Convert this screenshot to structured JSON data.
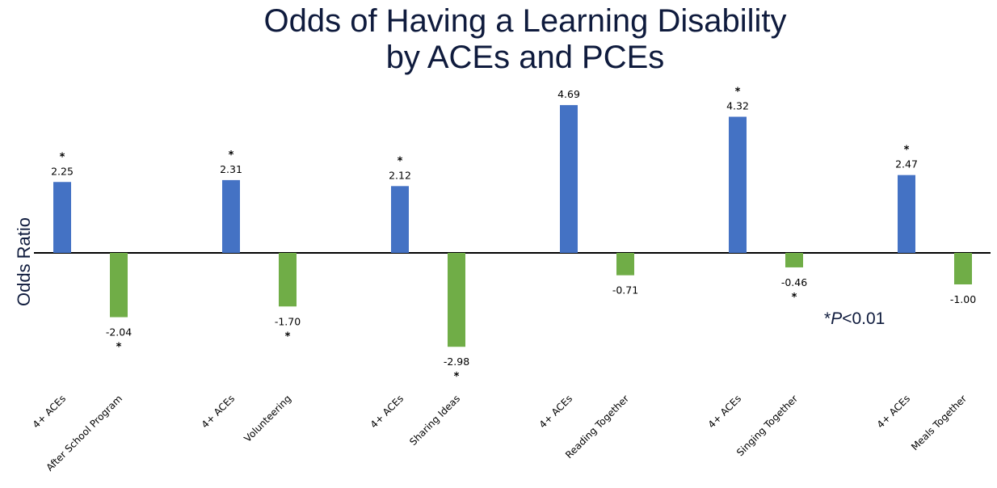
{
  "chart_data": {
    "type": "bar",
    "title_line1": "Odds of Having a Learning Disability",
    "title_line2": "by ACEs and PCEs",
    "ylabel": "Odds Ratio",
    "xlabel": "",
    "note_prefix": "*",
    "note_p": "P",
    "note_suffix": "<0.01",
    "categories": [
      "4+ ACEs",
      "After School Program",
      "4+ ACEs",
      "Volunteering",
      "4+ ACEs",
      "Sharing Ideas",
      "4+ ACEs",
      "Reading Together",
      "4+ ACEs",
      "Singing Together",
      "4+ ACEs",
      "Meals Together"
    ],
    "values": [
      2.25,
      -2.04,
      2.31,
      -1.7,
      2.12,
      -2.98,
      4.69,
      -0.71,
      4.32,
      -0.46,
      2.47,
      -1.0
    ],
    "value_labels": [
      "2.25",
      "-2.04",
      "2.31",
      "-1.70",
      "2.12",
      "-2.98",
      "4.69",
      "-0.71",
      "4.32",
      "-0.46",
      "2.47",
      "-1.00"
    ],
    "significant": [
      true,
      true,
      true,
      true,
      true,
      true,
      false,
      false,
      true,
      true,
      true,
      false
    ],
    "colors": {
      "aces": "#4472c4",
      "pces": "#70ad47",
      "axis": "#000000",
      "title": "#0f1b3d"
    },
    "grid": false,
    "legend": "none"
  }
}
